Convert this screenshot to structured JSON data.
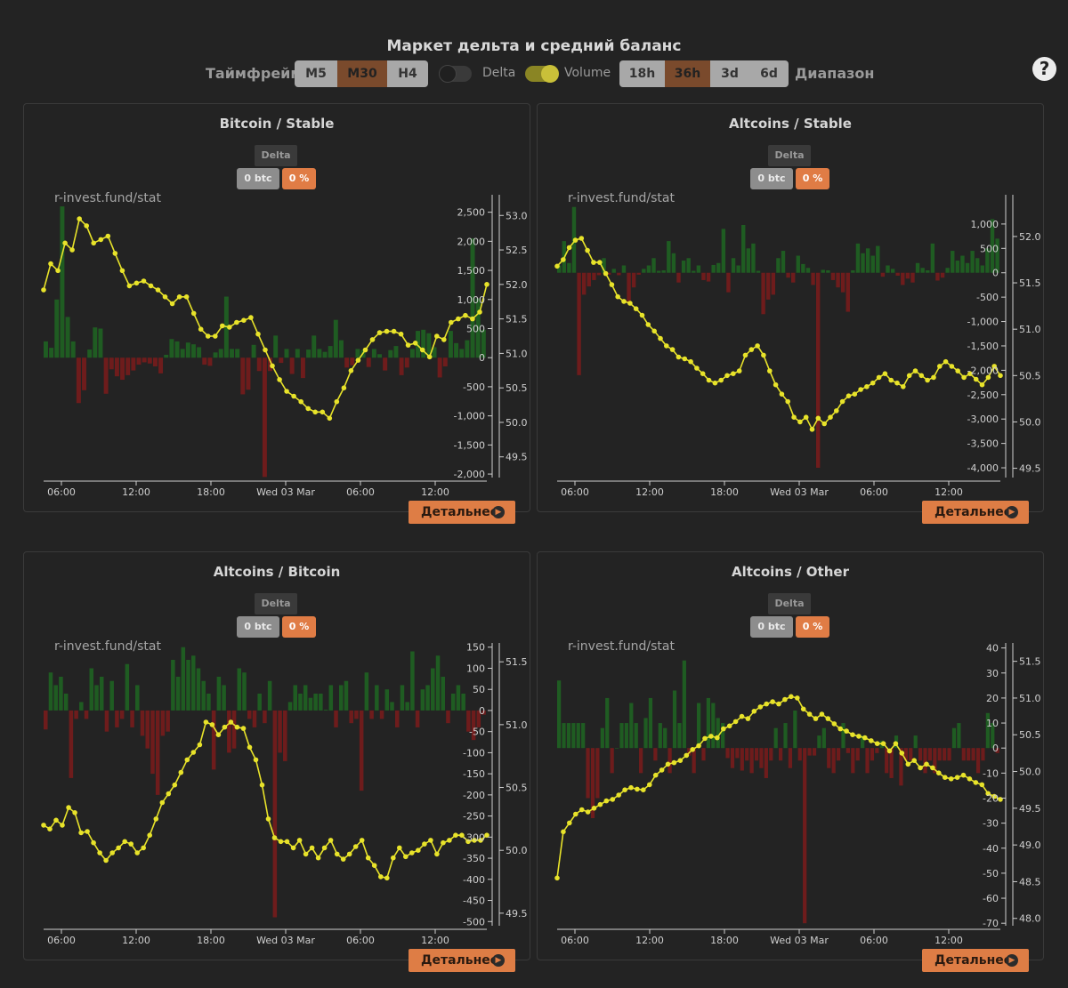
{
  "page": {
    "title": "Маркет дельта и средний баланс",
    "timeframe_label": "Таймфрейм",
    "timeframes": [
      "M5",
      "M30",
      "H4"
    ],
    "timeframe_active": "M30",
    "toggle_delta_label": "Delta",
    "toggle_delta_on": false,
    "toggle_volume_label": "Volume",
    "toggle_volume_on": true,
    "ranges": [
      "18h",
      "36h",
      "3d",
      "6d"
    ],
    "range_active": "36h",
    "range_label": "Диапазон",
    "help_icon": "question-circle-icon"
  },
  "colors": {
    "accent": "#de7d45",
    "line": "#e8e32a",
    "bar_pos": "#1f5c22",
    "bar_neg": "#6e1c1c",
    "bg": "#232323"
  },
  "panels": [
    {
      "title": "Bitcoin / Stable",
      "delta_label": "Delta",
      "btc_badge": "0 btc",
      "pct_badge": "0 %",
      "watermark": "r-invest.fund/stat",
      "detail_label": "Детальнее"
    },
    {
      "title": "Altcoins / Stable",
      "delta_label": "Delta",
      "btc_badge": "0 btc",
      "pct_badge": "0 %",
      "watermark": "r-invest.fund/stat",
      "detail_label": "Детальнее"
    },
    {
      "title": "Altcoins / Bitcoin",
      "delta_label": "Delta",
      "btc_badge": "0 btc",
      "pct_badge": "0 %",
      "watermark": "r-invest.fund/stat",
      "detail_label": "Детальнее"
    },
    {
      "title": "Altcoins / Other",
      "delta_label": "Delta",
      "btc_badge": "0 btc",
      "pct_badge": "0 %",
      "watermark": "r-invest.fund/stat",
      "detail_label": "Детальнее"
    }
  ],
  "chart_data": [
    {
      "type": "bar+line",
      "title": "Bitcoin / Stable",
      "x_tick_labels": [
        "06:00",
        "12:00",
        "18:00",
        "Wed 03 Mar",
        "06:00",
        "12:00"
      ],
      "y_left": {
        "ticks": [
          2500,
          2000,
          1500,
          1000,
          500,
          0,
          -500,
          -1000,
          -1500,
          -2000
        ],
        "tick_labels": [
          "2,500",
          "2,000",
          "1,500",
          "1,000",
          "500",
          "0",
          "-500",
          "-1,000",
          "-1,500",
          "-2,000"
        ],
        "range": [
          -2060,
          2800
        ]
      },
      "y_right": {
        "ticks": [
          53.0,
          52.5,
          52.0,
          51.5,
          51.0,
          50.5,
          50.0,
          49.5
        ],
        "tick_labels": [
          "53.0",
          "52.5",
          "52.0",
          "51.5",
          "51.0",
          "50.5",
          "50.0",
          "49.5"
        ],
        "range": [
          49.2,
          53.3
        ]
      },
      "bars": [
        280,
        170,
        1000,
        2600,
        700,
        280,
        -780,
        -560,
        140,
        520,
        500,
        -620,
        -200,
        -320,
        -380,
        -300,
        -220,
        -120,
        -80,
        -100,
        -150,
        -270,
        50,
        320,
        280,
        150,
        260,
        230,
        180,
        -120,
        -140,
        90,
        150,
        1050,
        150,
        150,
        -630,
        -550,
        220,
        -230,
        -2050,
        -230,
        380,
        -90,
        150,
        -280,
        150,
        -350,
        140,
        380,
        150,
        100,
        200,
        650,
        300,
        -170,
        -130,
        150,
        130,
        -160,
        150,
        60,
        -220,
        130,
        200,
        -300,
        -170,
        150,
        460,
        480,
        420,
        180,
        -340,
        -150,
        460,
        250,
        150,
        300,
        2050,
        1020,
        480
      ],
      "line": [
        51.92,
        52.3,
        52.2,
        52.6,
        52.5,
        52.95,
        52.85,
        52.6,
        52.65,
        52.7,
        52.45,
        52.2,
        51.98,
        52.02,
        52.05,
        51.98,
        51.92,
        51.82,
        51.72,
        51.82,
        51.82,
        51.58,
        51.35,
        51.25,
        51.25,
        51.4,
        51.38,
        51.45,
        51.48,
        51.52,
        51.28,
        51.05,
        50.82,
        50.62,
        50.45,
        50.38,
        50.3,
        50.2,
        50.15,
        50.15,
        50.06,
        50.3,
        50.5,
        50.75,
        50.9,
        51.05,
        51.2,
        51.3,
        51.32,
        51.32,
        51.28,
        51.12,
        51.15,
        51.05,
        50.95,
        51.25,
        51.2,
        51.45,
        51.5,
        51.55,
        51.5,
        51.6,
        52.0
      ]
    },
    {
      "type": "bar+line",
      "title": "Altcoins / Stable",
      "x_tick_labels": [
        "06:00",
        "12:00",
        "18:00",
        "Wed 03 Mar",
        "06:00",
        "12:00"
      ],
      "y_left": {
        "ticks": [
          1000,
          500,
          0,
          -500,
          -1000,
          -1500,
          -2000,
          -2500,
          -3000,
          -3500,
          -4000
        ],
        "tick_labels": [
          "1,000",
          "500",
          "0",
          "-500",
          "-1,000",
          "-1,500",
          "-2,000",
          "-2,500",
          "-3,000",
          "-3,500",
          "-4,000"
        ],
        "range": [
          -4200,
          1600
        ]
      },
      "y_right": {
        "ticks": [
          52.0,
          51.5,
          51.0,
          50.5,
          50.0,
          49.5
        ],
        "tick_labels": [
          "52.0",
          "51.5",
          "51.0",
          "50.5",
          "50.0",
          "49.5"
        ],
        "range": [
          49.4,
          52.45
        ]
      },
      "bars": [
        150,
        650,
        200,
        1350,
        -2100,
        -450,
        -280,
        -150,
        -50,
        300,
        -40,
        80,
        -50,
        150,
        -600,
        -300,
        -40,
        80,
        150,
        300,
        40,
        50,
        650,
        400,
        -200,
        250,
        300,
        40,
        150,
        -150,
        -180,
        160,
        200,
        900,
        -400,
        300,
        150,
        980,
        500,
        600,
        40,
        -850,
        -550,
        -450,
        300,
        450,
        -100,
        -200,
        350,
        180,
        100,
        -250,
        -4000,
        60,
        50,
        -150,
        -300,
        -400,
        -800,
        50,
        600,
        400,
        500,
        350,
        550,
        -80,
        150,
        80,
        -60,
        -250,
        -120,
        -200,
        200,
        100,
        50,
        600,
        -160,
        -100,
        100,
        450,
        250,
        350,
        200,
        450,
        300,
        150,
        500,
        1100,
        700
      ],
      "line": [
        51.68,
        51.75,
        51.88,
        51.96,
        51.98,
        51.85,
        51.72,
        51.72,
        51.6,
        51.48,
        51.35,
        51.3,
        51.28,
        51.22,
        51.15,
        51.05,
        50.98,
        50.9,
        50.82,
        50.78,
        50.7,
        50.68,
        50.65,
        50.58,
        50.52,
        50.45,
        50.42,
        50.45,
        50.5,
        50.52,
        50.55,
        50.72,
        50.78,
        50.82,
        50.72,
        50.55,
        50.4,
        50.3,
        50.22,
        50.05,
        50.0,
        50.05,
        49.92,
        50.04,
        49.98,
        50.05,
        50.12,
        50.22,
        50.28,
        50.3,
        50.35,
        50.38,
        50.42,
        50.48,
        50.52,
        50.45,
        50.42,
        50.38,
        50.5,
        50.55,
        50.5,
        50.45,
        50.48,
        50.6,
        50.65,
        50.6,
        50.55,
        50.48,
        50.52,
        50.46,
        50.4,
        50.48,
        50.6,
        50.5
      ]
    },
    {
      "type": "bar+line",
      "title": "Altcoins / Bitcoin",
      "x_tick_labels": [
        "06:00",
        "12:00",
        "18:00",
        "Wed 03 Mar",
        "06:00",
        "12:00"
      ],
      "y_left": {
        "ticks": [
          150,
          100,
          50,
          0,
          -50,
          -100,
          -150,
          -200,
          -250,
          -300,
          -350,
          -400,
          -450,
          -500
        ],
        "tick_labels": [
          "150",
          "100",
          "50",
          "0",
          "-50",
          "-100",
          "-150",
          "-200",
          "-250",
          "-300",
          "-350",
          "-400",
          "-450",
          "-500"
        ],
        "range": [
          -510,
          160
        ]
      },
      "y_right": {
        "ticks": [
          51.5,
          51.0,
          50.5,
          50.0,
          49.5
        ],
        "tick_labels": [
          "51.5",
          "51.0",
          "50.5",
          "50.0",
          "49.5"
        ],
        "range": [
          49.4,
          51.65
        ]
      },
      "bars": [
        -45,
        90,
        60,
        80,
        40,
        -160,
        -20,
        20,
        -20,
        100,
        60,
        80,
        -50,
        70,
        -40,
        -20,
        110,
        -40,
        60,
        -60,
        -90,
        -150,
        -200,
        -60,
        -50,
        120,
        80,
        150,
        120,
        130,
        100,
        70,
        40,
        -140,
        80,
        60,
        -100,
        -90,
        100,
        90,
        -20,
        -40,
        40,
        -30,
        70,
        -490,
        -100,
        -120,
        20,
        60,
        40,
        60,
        30,
        40,
        40,
        2,
        60,
        -40,
        60,
        70,
        -30,
        -20,
        -190,
        90,
        -20,
        60,
        -20,
        50,
        20,
        -40,
        60,
        20,
        140,
        -40,
        50,
        60,
        100,
        130,
        80,
        -30,
        40,
        60,
        40,
        -50,
        -70,
        -40,
        -10
      ],
      "line": [
        50.2,
        50.17,
        50.24,
        50.2,
        50.34,
        50.3,
        50.14,
        50.15,
        50.06,
        49.98,
        49.92,
        49.98,
        50.02,
        50.07,
        50.05,
        49.98,
        50.02,
        50.12,
        50.25,
        50.38,
        50.45,
        50.52,
        50.62,
        50.72,
        50.78,
        50.84,
        51.02,
        51.0,
        50.92,
        50.98,
        51.02,
        50.98,
        50.97,
        50.82,
        50.72,
        50.52,
        50.25,
        50.1,
        50.07,
        50.07,
        50.02,
        50.08,
        49.97,
        50.02,
        49.94,
        50.02,
        50.08,
        49.97,
        49.93,
        49.97,
        50.03,
        50.08,
        49.94,
        49.88,
        49.79,
        49.78,
        49.94,
        50.02,
        49.95,
        49.98,
        50.0,
        50.05,
        50.08,
        49.97,
        50.06,
        50.08,
        50.12,
        50.12,
        50.07,
        50.08,
        50.08,
        50.12
      ]
    },
    {
      "type": "bar+line",
      "title": "Altcoins / Other",
      "x_tick_labels": [
        "06:00",
        "12:00",
        "18:00",
        "Wed 03 Mar",
        "06:00",
        "12:00"
      ],
      "y_left": {
        "ticks": [
          40,
          30,
          20,
          10,
          0,
          -10,
          -20,
          -30,
          -40,
          -50,
          -60,
          -70
        ],
        "tick_labels": [
          "40",
          "30",
          "20",
          "10",
          "0",
          "-10",
          "-20",
          "-30",
          "-40",
          "-50",
          "-60",
          "-70"
        ],
        "range": [
          -71,
          42
        ]
      },
      "y_right": {
        "ticks": [
          51.5,
          51.0,
          50.5,
          50.0,
          49.5,
          49.0,
          48.5,
          48.0
        ],
        "tick_labels": [
          "51.5",
          "51.0",
          "50.5",
          "50.0",
          "49.5",
          "49.0",
          "48.5",
          "48.0"
        ],
        "range": [
          47.9,
          51.75
        ]
      },
      "bars": [
        27,
        10,
        10,
        10,
        10,
        10,
        -20,
        -28,
        -20,
        8,
        20,
        -10,
        0,
        10,
        10,
        18,
        10,
        -10,
        12,
        20,
        -5,
        10,
        8,
        -10,
        23,
        10,
        35,
        -3,
        -10,
        18,
        -5,
        20,
        18,
        12,
        10,
        -4,
        -8,
        -4,
        -9,
        -5,
        -10,
        -5,
        -8,
        -12,
        -5,
        8,
        -5,
        10,
        -8,
        15,
        -5,
        -70,
        -3,
        -3,
        5,
        8,
        -8,
        -10,
        -5,
        10,
        -2,
        -10,
        -5,
        5,
        -10,
        -5,
        -2,
        3,
        -10,
        -12,
        5,
        -15,
        -5,
        -5,
        5,
        -5,
        -10,
        -5,
        -10,
        -5,
        -5,
        -5,
        8,
        10,
        -5,
        -5,
        -5,
        -10,
        -5,
        14,
        10,
        -2
      ],
      "line": [
        48.55,
        49.18,
        49.3,
        49.42,
        49.48,
        49.45,
        49.5,
        49.55,
        49.6,
        49.62,
        49.68,
        49.75,
        49.78,
        49.76,
        49.75,
        49.82,
        49.95,
        50.02,
        50.1,
        50.12,
        50.15,
        50.22,
        50.3,
        50.35,
        50.45,
        50.48,
        50.46,
        50.58,
        50.62,
        50.68,
        50.75,
        50.72,
        50.82,
        50.88,
        50.92,
        50.95,
        50.92,
        50.98,
        51.02,
        51.0,
        50.85,
        50.78,
        50.72,
        50.78,
        50.72,
        50.65,
        50.58,
        50.55,
        50.5,
        50.48,
        50.46,
        50.42,
        50.38,
        50.38,
        50.28,
        50.38,
        50.25,
        50.1,
        50.15,
        50.05,
        50.1,
        50.05,
        49.98,
        49.92,
        49.9,
        49.92,
        49.95,
        49.9,
        49.85,
        49.82,
        49.7,
        49.66,
        49.62
      ]
    }
  ]
}
